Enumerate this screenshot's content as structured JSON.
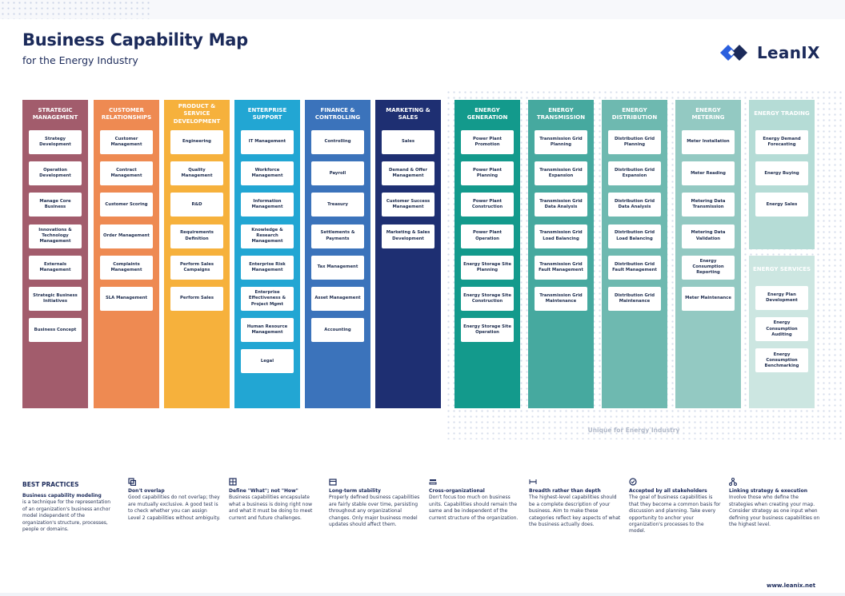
{
  "header": {
    "title": "Business Capability Map",
    "subtitle": "for the Energy Industry",
    "logo_text": "LeanIX"
  },
  "unique_label": "Unique for Energy Industry",
  "columns": [
    {
      "title": "STRATEGIC MANAGEMENT",
      "color": "#a25c6c",
      "items": [
        "Strategy Development",
        "Operation Development",
        "Manage Core Business",
        "Innovations & Technology Management",
        "Externals Management",
        "Strategic Business Initiatives",
        "Business Concept"
      ]
    },
    {
      "title": "CUSTOMER RELATIONSHIPS",
      "color": "#ee8a52",
      "items": [
        "Customer Management",
        "Contract Management",
        "Customer Scoring",
        "Order Management",
        "Complaints Management",
        "SLA Management"
      ]
    },
    {
      "title": "PRODUCT & SERVICE DEVELOPMENT",
      "color": "#f6b13c",
      "items": [
        "Engineering",
        "Quality Management",
        "R&D",
        "Requirements Definition",
        "Perform Sales Campaigns",
        "Perform Sales"
      ]
    },
    {
      "title": "ENTERPRISE SUPPORT",
      "color": "#22a6d3",
      "items": [
        "IT Management",
        "Workforce Management",
        "Information Management",
        "Knowledge & Research Management",
        "Enterprise Risk Management",
        "Enterprise Effectiveness & Project Mgmt",
        "Human Resource Management",
        "Legal"
      ]
    },
    {
      "title": "FINANCE & CONTROLLING",
      "color": "#3b73bb",
      "items": [
        "Controlling",
        "Payroll",
        "Treasury",
        "Settlements & Payments",
        "Tax Management",
        "Asset Management",
        "Accounting"
      ]
    },
    {
      "title": "MARKETING & SALES",
      "color": "#1e2f72",
      "items": [
        "Sales",
        "Demand & Offer Management",
        "Customer Success Management",
        "Marketing & Sales Development"
      ]
    },
    {
      "title": "ENERGY GENERATION",
      "color": "#139a8c",
      "items": [
        "Power Plant Promotion",
        "Power Plant Planning",
        "Power Plant Construction",
        "Power Plant Operation",
        "Energy Storage Site Planning",
        "Energy Storage Site Construction",
        "Energy Storage Site Operation"
      ]
    },
    {
      "title": "ENERGY TRANSMISSION",
      "color": "#46a99f",
      "items": [
        "Transmission Grid Planning",
        "Transmission Grid Expansion",
        "Transmission Grid Data Analysis",
        "Transmission Grid Load Balancing",
        "Transmission Grid Fault Management",
        "Transmission Grid Maintenance"
      ]
    },
    {
      "title": "ENERGY DISTRIBUTION",
      "color": "#6eb9b0",
      "items": [
        "Distribution Grid Planning",
        "Distribution Grid Expansion",
        "Distribution Grid Data Analysis",
        "Distribution Grid Load Balancing",
        "Distribution Grid Fault Management",
        "Distribution Grid Maintenance"
      ]
    },
    {
      "title": "ENERGY METERING",
      "color": "#93c9c2",
      "items": [
        "Meter Installation",
        "Meter Reading",
        "Metering Data Transmission",
        "Metering Data Validation",
        "Energy Consumption Reporting",
        "Meter Maintenance"
      ]
    }
  ],
  "trading": {
    "title": "ENERGY TRADING",
    "color": "#b5dcd6",
    "items": [
      "Energy Demand Forecasting",
      "Energy Buying",
      "Energy Sales"
    ]
  },
  "services": {
    "title": "ENERGY SERVICES",
    "color": "#cce6e1",
    "items": [
      "Energy Plan Development",
      "Energy Consumption Auditing",
      "Energy Consumption Benchmarking"
    ]
  },
  "best_practices": {
    "title": "BEST PRACTICES",
    "intro_heading": "Business capability modeling",
    "intro_text": "is a technique for the representation of an organization's business anchor model independent of the organization's structure, processes, people or domains.",
    "items": [
      {
        "icon": "overlap-icon",
        "heading": "Don't overlap",
        "text": "Good capabilities do not overlap; they are mutually exclusive. A good test is to check whether you can assign Level 2 capabilities without ambiguity."
      },
      {
        "icon": "grid-icon",
        "heading": "Define \"What\"; not \"How\"",
        "text": "Business capabilities encapsulate what a business is doing right now and what it must be doing to meet current and future challenges."
      },
      {
        "icon": "calendar-icon",
        "heading": "Long-term stability",
        "text": "Properly defined business capabilities are fairly stable over time, persisting throughout any organizational changes. Only major business model updates should affect them."
      },
      {
        "icon": "layers-icon",
        "heading": "Cross-organizational",
        "text": "Don't focus too much on business units. Capabilities should remain the same and be independent of the current structure of the organization."
      },
      {
        "icon": "width-icon",
        "heading": "Breadth rather than depth",
        "text": "The highest-level capabilities should be a complete description of your business. Aim to make these categories reflect key aspects of what the business actually does."
      },
      {
        "icon": "check-circle-icon",
        "heading": "Accepted by all stakeholders",
        "text": "The goal of business capabilities is that they become a common basis for discussion and planning. Take every opportunity to anchor your organization's processes to the model."
      },
      {
        "icon": "hierarchy-icon",
        "heading": "Linking strategy & execution",
        "text": "Involve those who define the strategies when creating your map. Consider strategy as one input when defining your business capabilities on the highest level."
      }
    ]
  },
  "footer": {
    "url": "www.leanix.net"
  }
}
